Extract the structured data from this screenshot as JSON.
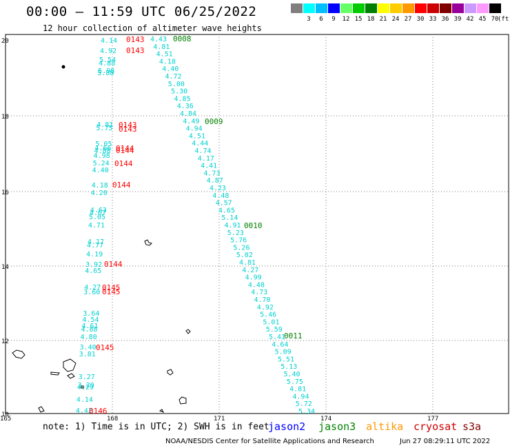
{
  "header": {
    "title": "00:00 – 11:59 UTC 06/25/2022",
    "subtitle": "12 hour collection of altimeter wave heights"
  },
  "color_scale": {
    "unit": "(ft)",
    "bins": [
      {
        "label": "",
        "color": "#7f7f7f"
      },
      {
        "label": "3",
        "color": "#00ffff"
      },
      {
        "label": "6",
        "color": "#00bfff"
      },
      {
        "label": "9",
        "color": "#0000ff"
      },
      {
        "label": "12",
        "color": "#66ff66"
      },
      {
        "label": "15",
        "color": "#00cc00"
      },
      {
        "label": "18",
        "color": "#008000"
      },
      {
        "label": "21",
        "color": "#ffff00"
      },
      {
        "label": "24",
        "color": "#ffcc00"
      },
      {
        "label": "27",
        "color": "#ff9900"
      },
      {
        "label": "30",
        "color": "#ff0000"
      },
      {
        "label": "33",
        "color": "#cc0000"
      },
      {
        "label": "36",
        "color": "#800000"
      },
      {
        "label": "39",
        "color": "#990099"
      },
      {
        "label": "42",
        "color": "#cc99ff"
      },
      {
        "label": "45",
        "color": "#ff99ff"
      },
      {
        "label": "70",
        "color": "#000000"
      }
    ]
  },
  "axes": {
    "lat_labels": [
      "20",
      "18",
      "16",
      "14",
      "12",
      "10"
    ],
    "lon_labels": [
      "165",
      "168",
      "171",
      "174",
      "177"
    ]
  },
  "colors": {
    "cyan": "#00d0d0",
    "red": "#ff0000",
    "green": "#008000"
  },
  "track_east": {
    "values": [
      "4.43",
      "4.81",
      "4.51",
      "4.18",
      "4.40",
      "4.72",
      "5.00",
      "5.30",
      "4.85",
      "4.36",
      "4.84",
      "4.49",
      "4.94",
      "4.51",
      "4.44",
      "4.74",
      "4.17",
      "4.41",
      "4.73",
      "4.87",
      "4.23",
      "4.48",
      "4.57",
      "4.65",
      "5.14",
      "4.91",
      "5.23",
      "5.76",
      "5.26",
      "5.02",
      "4.81",
      "4.27",
      "4.99",
      "4.48",
      "4.73",
      "4.70",
      "4.92",
      "5.46",
      "5.01",
      "5.59",
      "5.41",
      "4.64",
      "5.09",
      "5.51",
      "5.13",
      "5.40",
      "5.75",
      "4.81",
      "4.94",
      "5.72",
      "5.34"
    ],
    "times": [
      {
        "label": "0008",
        "color": "green"
      },
      {
        "label": "0009",
        "color": "green"
      },
      {
        "label": "0010",
        "color": "green"
      },
      {
        "label": "0011",
        "color": "green"
      }
    ]
  },
  "track_west": {
    "values": [
      "4.14",
      "4.92",
      "5.54",
      "4.88",
      "5.98",
      "5.88",
      "4.81",
      "5.75",
      "5.05",
      "4.66",
      "4.88",
      "4.98",
      "5.24",
      "4.40",
      "4.18",
      "4.20",
      "4.63",
      "4.67",
      "5.05",
      "4.71",
      "4.17",
      "4.77",
      "4.19",
      "3.92",
      "4.65",
      "4.27",
      "3.60",
      "3.64",
      "4.54",
      "4.61",
      "4.88",
      "4.80",
      "3.40",
      "3.81",
      "3.27",
      "3.29",
      "4.29",
      "4.14",
      "4.42"
    ],
    "times": [
      {
        "label": "0143",
        "color": "red"
      },
      {
        "label": "0143",
        "color": "red"
      },
      {
        "label": "0143",
        "color": "red"
      },
      {
        "label": "0143",
        "color": "red"
      },
      {
        "label": "0144",
        "color": "red"
      },
      {
        "label": "0144",
        "color": "red"
      },
      {
        "label": "0144",
        "color": "red"
      },
      {
        "label": "0144",
        "color": "red"
      },
      {
        "label": "0144",
        "color": "red"
      },
      {
        "label": "0145",
        "color": "red"
      },
      {
        "label": "0145",
        "color": "red"
      },
      {
        "label": "0145",
        "color": "red"
      },
      {
        "label": "0146",
        "color": "red"
      }
    ]
  },
  "footer": {
    "note": "note: 1) Time is in UTC; 2) SWH is in feet",
    "satellites": [
      {
        "name": "jason2",
        "color": "#0000ff"
      },
      {
        "name": "jason3",
        "color": "#008000"
      },
      {
        "name": "altika",
        "color": "#ff9900"
      },
      {
        "name": "cryosat",
        "color": "#cc0000"
      },
      {
        "name": "s3a",
        "color": "#800000"
      }
    ],
    "credit": "NOAA/NESDIS Center for Satellite Applications and Research",
    "timestamp": "Jun 27 08:29:11 UTC 2022"
  }
}
